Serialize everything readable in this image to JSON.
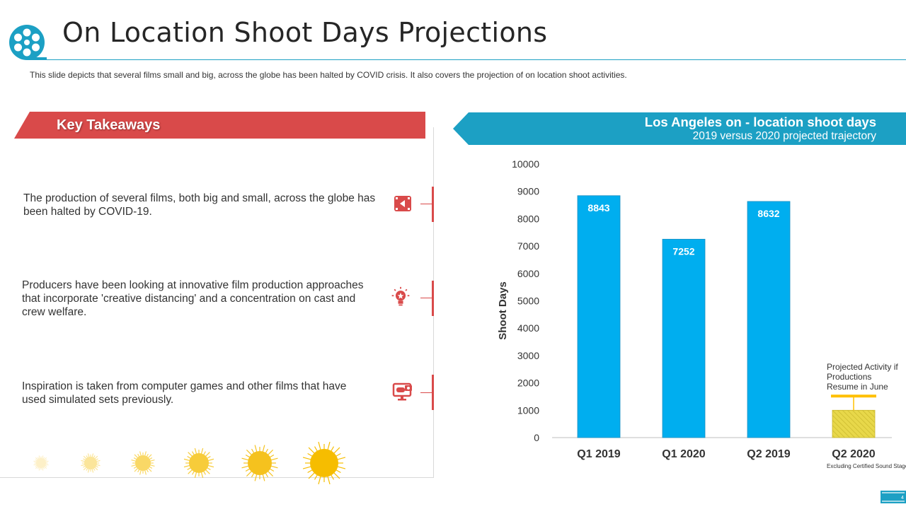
{
  "header": {
    "title": "On Location Shoot Days Projections",
    "subtitle": "This slide depicts that several  films small and big, across the globe has been halted by COVID  crisis. It also covers  the projection of on location shoot activities."
  },
  "colors": {
    "accent": "#1ca0c4",
    "red": "#d94a4a",
    "bar": "#00aeef",
    "projected": "#e8d84a",
    "projected_line": "#ffc000"
  },
  "takeaways": {
    "heading": "Key Takeaways",
    "items": [
      {
        "text": "The production of several films, both big and small,  across the globe has been halted by COVID-19.",
        "icon": "film-clapper-icon"
      },
      {
        "text": "Producers have been looking at innovative film production approaches that incorporate 'creative distancing' and a concentration  on cast and crew welfare.",
        "icon": "lightbulb-star-icon"
      },
      {
        "text": "Inspiration is taken from computer games and other films that have used simulated sets previously.",
        "icon": "computer-gamepad-icon"
      }
    ]
  },
  "chart_panel": {
    "title": "Los Angeles on - location shoot days",
    "subtitle": "2019 versus 2020 projected trajectory",
    "annotation": "Projected Activity  if Productions Resume in June",
    "footnote": "Excluding  Certified  Sound  Stages"
  },
  "chart_data": {
    "type": "bar",
    "title": "Los Angeles on - location shoot days",
    "subtitle": "2019 versus 2020 projected trajectory",
    "categories": [
      "Q1 2019",
      "Q1 2020",
      "Q2 2019",
      "Q2 2020"
    ],
    "values": [
      8843,
      7252,
      8632,
      1000
    ],
    "data_labels": [
      "8843",
      "7252",
      "8632",
      ""
    ],
    "projected": [
      false,
      false,
      false,
      true
    ],
    "xlabel": "",
    "ylabel": "Shoot Days",
    "ylim": [
      0,
      10000
    ],
    "yticks": [
      0,
      1000,
      2000,
      3000,
      4000,
      5000,
      6000,
      7000,
      8000,
      9000,
      10000
    ],
    "grid": false
  }
}
